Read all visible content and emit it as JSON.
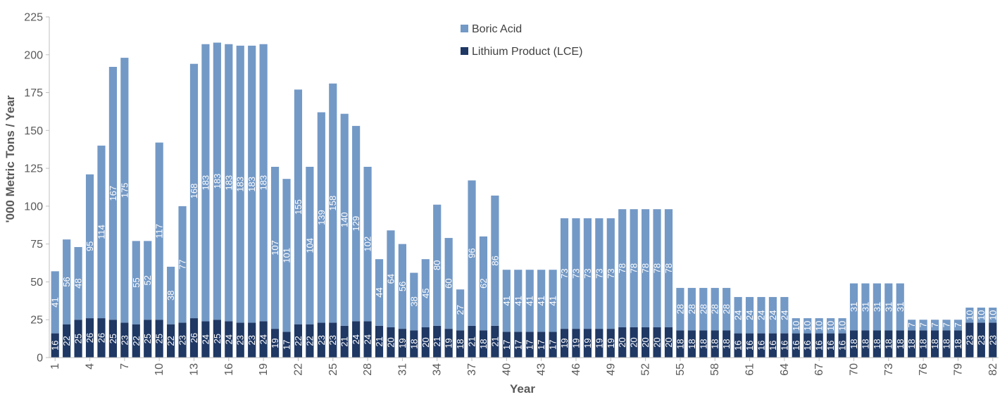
{
  "chart_data": {
    "type": "bar",
    "stacked": true,
    "title": "",
    "xlabel": "Year",
    "ylabel": "'000 Metric Tons / Year",
    "ylim": [
      0,
      225
    ],
    "yticks": [
      0,
      25,
      50,
      75,
      100,
      125,
      150,
      175,
      200,
      225
    ],
    "xtick_labels": [
      "1",
      "4",
      "7",
      "10",
      "13",
      "16",
      "19",
      "22",
      "25",
      "28",
      "31",
      "34",
      "37",
      "40",
      "43",
      "46",
      "49",
      "52",
      "55",
      "58",
      "61",
      "64",
      "67",
      "70",
      "73",
      "76",
      "79",
      "82"
    ],
    "grid": false,
    "legend_position": "top-center",
    "colors": {
      "boric_acid": "#7399C6",
      "lithium": "#1F3864"
    },
    "categories": [
      1,
      2,
      3,
      4,
      5,
      6,
      7,
      8,
      9,
      10,
      11,
      12,
      13,
      14,
      15,
      16,
      17,
      18,
      19,
      20,
      21,
      22,
      23,
      24,
      25,
      26,
      27,
      28,
      29,
      30,
      31,
      32,
      33,
      34,
      35,
      36,
      37,
      38,
      39,
      40,
      41,
      42,
      43,
      44,
      45,
      46,
      47,
      48,
      49,
      50,
      51,
      52,
      53,
      54,
      55,
      56,
      57,
      58,
      59,
      60,
      61,
      62,
      63,
      64,
      65,
      66,
      67,
      68,
      69,
      70,
      71,
      72,
      73,
      74,
      75,
      76,
      77,
      78,
      79,
      80,
      81,
      82
    ],
    "series": [
      {
        "name": "Lithium Product (LCE)",
        "values": [
          16,
          22,
          25,
          26,
          26,
          25,
          23,
          22,
          25,
          25,
          22,
          23,
          26,
          24,
          25,
          24,
          23,
          23,
          24,
          19,
          17,
          22,
          22,
          23,
          23,
          21,
          24,
          24,
          21,
          20,
          19,
          18,
          20,
          21,
          19,
          18,
          21,
          18,
          21,
          17,
          17,
          17,
          17,
          17,
          19,
          19,
          19,
          19,
          19,
          20,
          20,
          20,
          20,
          20,
          18,
          18,
          18,
          18,
          18,
          16,
          16,
          16,
          16,
          16,
          16,
          16,
          16,
          16,
          16,
          18,
          18,
          18,
          18,
          18,
          18,
          18,
          18,
          18,
          18,
          23,
          23,
          23
        ]
      },
      {
        "name": "Boric Acid",
        "values": [
          41,
          56,
          48,
          95,
          114,
          167,
          175,
          55,
          52,
          117,
          38,
          77,
          168,
          183,
          183,
          183,
          183,
          183,
          183,
          107,
          101,
          155,
          104,
          139,
          158,
          140,
          129,
          102,
          44,
          64,
          56,
          38,
          45,
          80,
          60,
          27,
          96,
          62,
          86,
          41,
          41,
          41,
          41,
          41,
          73,
          73,
          73,
          73,
          73,
          78,
          78,
          78,
          78,
          78,
          28,
          28,
          28,
          28,
          28,
          24,
          24,
          24,
          24,
          24,
          10,
          10,
          10,
          10,
          10,
          31,
          31,
          31,
          31,
          31,
          7,
          7,
          7,
          7,
          7,
          10,
          10,
          10
        ]
      }
    ]
  }
}
